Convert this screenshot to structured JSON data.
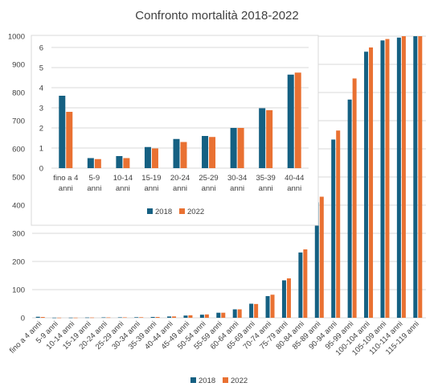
{
  "chart_data": [
    {
      "type": "bar",
      "title": "Confronto mortalità 2018-2022",
      "xlabel": "",
      "ylabel": "",
      "ylim": [
        0,
        1000
      ],
      "yticks": [
        0,
        100,
        200,
        300,
        400,
        500,
        600,
        700,
        800,
        900,
        1000
      ],
      "grid": true,
      "legend_position": "bottom",
      "categories": [
        "fino a 4 anni",
        "5-9 anni",
        "10-14 anni",
        "15-19 anni",
        "20-24 anni",
        "25-29 anni",
        "30-34 anni",
        "35-39 anni",
        "40-44 anni",
        "45-49 anni",
        "50-54 anni",
        "55-59 anni",
        "60-64 anni",
        "65-69 anni",
        "70-74 anni",
        "75-79 anni",
        "80-84 anni",
        "85-89 anni",
        "90-94 anni",
        "95-99 anni",
        "100-104 anni",
        "105-109 anni",
        "110-114 anni",
        "115-119 anni"
      ],
      "series": [
        {
          "name": "2018",
          "color": "#156082",
          "values": [
            3.6,
            0.5,
            0.6,
            1.05,
            1.45,
            1.6,
            2.0,
            2.98,
            4.65,
            8,
            11,
            18,
            30,
            50,
            77,
            133,
            232,
            410,
            633,
            775,
            945,
            985,
            995,
            1000
          ]
        },
        {
          "name": "2022",
          "color": "#E97132",
          "values": [
            2.8,
            0.45,
            0.5,
            0.98,
            1.3,
            1.55,
            2.0,
            2.88,
            4.75,
            9,
            12,
            18,
            30,
            49,
            82,
            140,
            243,
            430,
            665,
            850,
            960,
            990,
            1000,
            1000
          ]
        }
      ]
    },
    {
      "type": "bar",
      "title": "",
      "xlabel": "",
      "ylabel": "",
      "ylim": [
        0,
        6
      ],
      "yticks": [
        0,
        1,
        2,
        3,
        4,
        5,
        6
      ],
      "grid": true,
      "legend_position": "bottom",
      "categories": [
        [
          "fino a 4",
          "anni"
        ],
        [
          "5-9",
          "anni"
        ],
        [
          "10-14",
          "anni"
        ],
        [
          "15-19",
          "anni"
        ],
        [
          "20-24",
          "anni"
        ],
        [
          "25-29",
          "anni"
        ],
        [
          "30-34",
          "anni"
        ],
        [
          "35-39",
          "anni"
        ],
        [
          "40-44",
          "anni"
        ]
      ],
      "series": [
        {
          "name": "2018",
          "color": "#156082",
          "values": [
            3.6,
            0.5,
            0.6,
            1.05,
            1.45,
            1.6,
            2.0,
            2.98,
            4.65
          ]
        },
        {
          "name": "2022",
          "color": "#E97132",
          "values": [
            2.8,
            0.45,
            0.5,
            0.98,
            1.3,
            1.55,
            2.0,
            2.88,
            4.75
          ]
        }
      ]
    }
  ]
}
